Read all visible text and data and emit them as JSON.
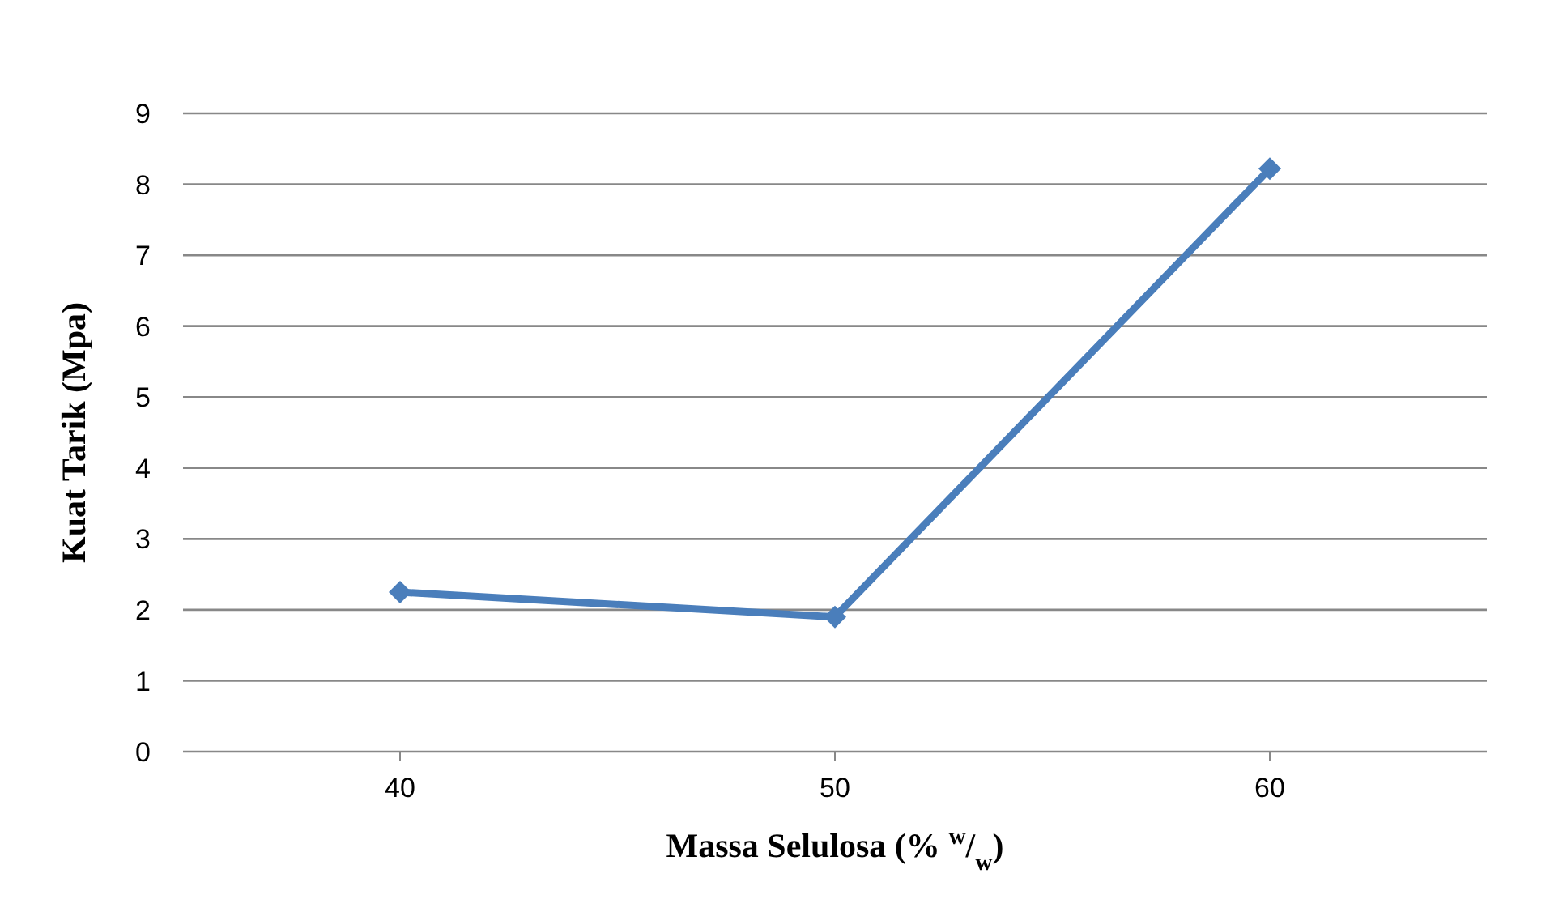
{
  "chart_data": {
    "type": "line",
    "xlabel": "Massa Selulosa (% $^{w}$/$_{w}$)",
    "ylabel": "Kuat Tarik (Mpa)",
    "categories": [
      "40",
      "50",
      "60"
    ],
    "series": [
      {
        "color": "#4a7ebb",
        "values": [
          2.25,
          1.9,
          8.22
        ]
      }
    ],
    "ylim": [
      0,
      9
    ],
    "yticks": [
      0,
      1,
      2,
      3,
      4,
      5,
      6,
      7,
      8,
      9
    ],
    "grid": "y",
    "marker": "diamond",
    "legend": false
  }
}
